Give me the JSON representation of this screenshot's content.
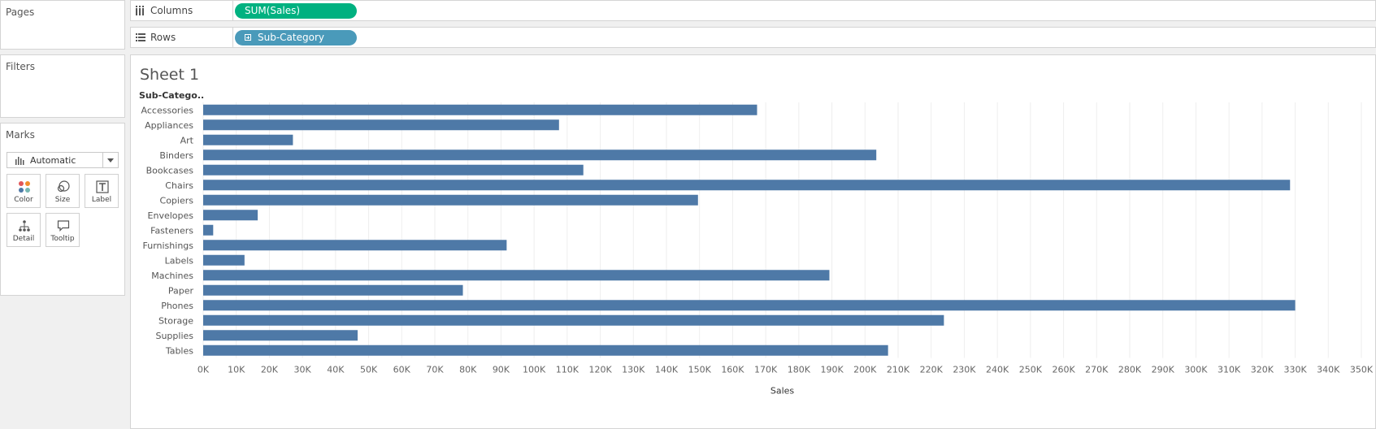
{
  "left_panels": {
    "pages_title": "Pages",
    "filters_title": "Filters",
    "marks_title": "Marks",
    "mark_type": "Automatic",
    "mark_buttons": [
      "Color",
      "Size",
      "Label",
      "Detail",
      "Tooltip"
    ]
  },
  "shelves": {
    "columns_label": "Columns",
    "columns_pill": "SUM(Sales)",
    "rows_label": "Rows",
    "rows_pill": "Sub-Category"
  },
  "sheet": {
    "title": "Sheet 1"
  },
  "colors": {
    "bar": "#4e79a7",
    "columns_pill": "#00b180",
    "rows_pill": "#4a9aba"
  },
  "chart_data": {
    "type": "bar",
    "orientation": "horizontal",
    "row_header": "Sub-Catego..",
    "xlabel": "Sales",
    "xlim": [
      0,
      350000
    ],
    "x_ticks": [
      "0K",
      "10K",
      "20K",
      "30K",
      "40K",
      "50K",
      "60K",
      "70K",
      "80K",
      "90K",
      "100K",
      "110K",
      "120K",
      "130K",
      "140K",
      "150K",
      "160K",
      "170K",
      "180K",
      "190K",
      "200K",
      "210K",
      "220K",
      "230K",
      "240K",
      "250K",
      "260K",
      "270K",
      "280K",
      "290K",
      "300K",
      "310K",
      "320K",
      "330K",
      "340K",
      "350K"
    ],
    "grid": true,
    "categories": [
      "Accessories",
      "Appliances",
      "Art",
      "Binders",
      "Bookcases",
      "Chairs",
      "Copiers",
      "Envelopes",
      "Fasteners",
      "Furnishings",
      "Labels",
      "Machines",
      "Paper",
      "Phones",
      "Storage",
      "Supplies",
      "Tables"
    ],
    "values": [
      167380,
      107532,
      27119,
      203413,
      114880,
      328449,
      149528,
      16476,
      3024,
      91705,
      12486,
      189239,
      78479,
      330007,
      223844,
      46674,
      206966
    ]
  }
}
